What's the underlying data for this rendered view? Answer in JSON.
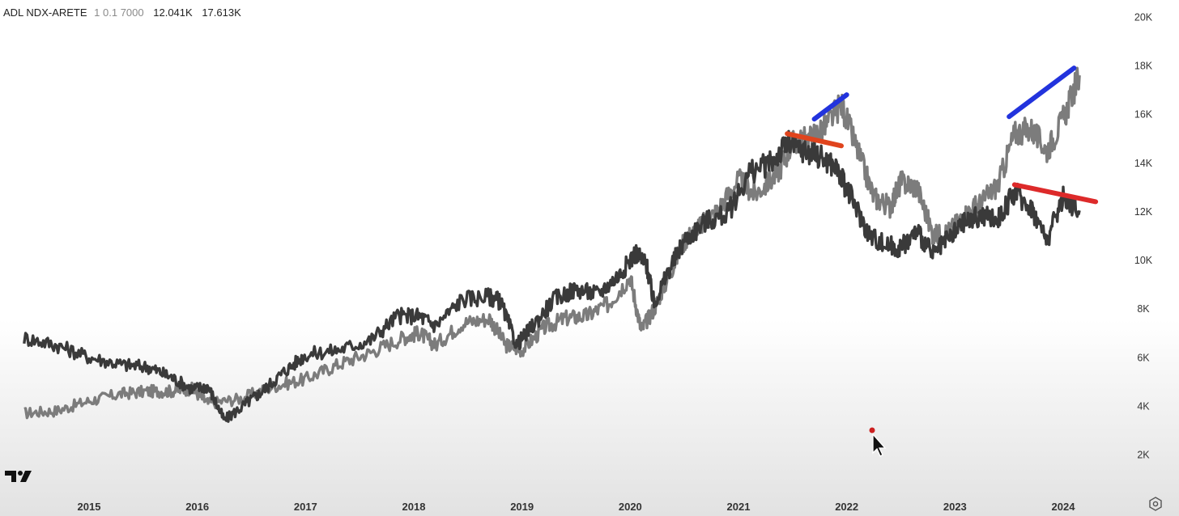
{
  "legend": {
    "title": "ADL NDX-ARETE",
    "params": "1 0.1 7000",
    "value1": "12.041K",
    "value2": "17.613K"
  },
  "icons": [
    "tradingview-logo-icon",
    "settings-icon",
    "mouse-cursor-icon"
  ],
  "colors": {
    "adl_line": "#3a3a3a",
    "ndx_line": "#7c7c7c",
    "divergence_up": "#2233dd",
    "divergence_down": "#dd2a2a",
    "divergence_down_alt": "#e0441d"
  },
  "chart_data": {
    "type": "line",
    "xlabel": "",
    "ylabel": "",
    "x_ticks": [
      "2015",
      "2016",
      "2017",
      "2018",
      "2019",
      "2020",
      "2021",
      "2022",
      "2023",
      "2024"
    ],
    "y_ticks": [
      "2K",
      "4K",
      "6K",
      "8K",
      "10K",
      "12K",
      "14K",
      "16K",
      "18K",
      "20K"
    ],
    "xlim": [
      2014.5,
      2024.6
    ],
    "ylim": [
      0,
      20500
    ],
    "grid": false,
    "series": [
      {
        "key": "ndx",
        "color": "#7c7c7c",
        "x": [
          2014.4,
          2014.7,
          2015.0,
          2015.3,
          2015.55,
          2015.75,
          2015.95,
          2016.1,
          2016.4,
          2016.7,
          2017.0,
          2017.3,
          2017.6,
          2017.9,
          2018.05,
          2018.2,
          2018.45,
          2018.7,
          2018.85,
          2019.0,
          2019.2,
          2019.4,
          2019.6,
          2019.8,
          2020.0,
          2020.1,
          2020.22,
          2020.35,
          2020.5,
          2020.65,
          2020.8,
          2021.0,
          2021.15,
          2021.35,
          2021.5,
          2021.65,
          2021.8,
          2021.95,
          2022.1,
          2022.25,
          2022.4,
          2022.5,
          2022.65,
          2022.8,
          2022.95,
          2023.1,
          2023.25,
          2023.4,
          2023.55,
          2023.7,
          2023.85,
          2024.0,
          2024.15
        ],
        "values": [
          3700,
          3800,
          4200,
          4500,
          4600,
          4600,
          4700,
          4100,
          4300,
          4800,
          5100,
          5700,
          6200,
          6800,
          7000,
          6500,
          7400,
          7600,
          6500,
          6300,
          7200,
          7600,
          7700,
          8200,
          9300,
          7100,
          8000,
          9300,
          10800,
          11400,
          12000,
          13300,
          12700,
          13500,
          14800,
          15000,
          15500,
          16400,
          14500,
          12600,
          12200,
          13200,
          13000,
          11000,
          11200,
          11900,
          12400,
          13100,
          15200,
          15400,
          14500,
          15800,
          17600
        ]
      },
      {
        "key": "adl",
        "color": "#3a3a3a",
        "x": [
          2014.4,
          2014.7,
          2015.0,
          2015.3,
          2015.55,
          2015.75,
          2015.95,
          2016.1,
          2016.25,
          2016.45,
          2016.6,
          2016.8,
          2017.0,
          2017.3,
          2017.6,
          2017.85,
          2018.05,
          2018.2,
          2018.45,
          2018.7,
          2018.8,
          2018.95,
          2019.1,
          2019.3,
          2019.5,
          2019.7,
          2019.9,
          2020.05,
          2020.15,
          2020.22,
          2020.35,
          2020.5,
          2020.7,
          2020.9,
          2021.1,
          2021.3,
          2021.45,
          2021.6,
          2021.75,
          2021.9,
          2022.05,
          2022.2,
          2022.35,
          2022.5,
          2022.65,
          2022.8,
          2022.95,
          2023.1,
          2023.25,
          2023.4,
          2023.55,
          2023.7,
          2023.85,
          2024.0,
          2024.15
        ],
        "values": [
          6800,
          6500,
          6000,
          5700,
          5600,
          5200,
          4700,
          4800,
          3400,
          4100,
          4600,
          5400,
          6100,
          6300,
          6700,
          7700,
          7700,
          7300,
          8400,
          8500,
          8300,
          6500,
          7300,
          8400,
          8800,
          8600,
          9400,
          10300,
          9800,
          8200,
          9500,
          10800,
          11600,
          11900,
          13600,
          14000,
          14800,
          14500,
          14300,
          13800,
          12500,
          11100,
          10600,
          10500,
          11200,
          10200,
          10900,
          11600,
          11800,
          11700,
          12800,
          12200,
          10800,
          12600,
          12041
        ]
      }
    ],
    "annotations": [
      {
        "type": "trendline",
        "color": "#2233dd",
        "x": [
          2021.7,
          2022.0
        ],
        "y": [
          15800,
          16800
        ]
      },
      {
        "type": "trendline",
        "color": "#2233dd",
        "x": [
          2023.5,
          2024.1
        ],
        "y": [
          15900,
          17900
        ]
      },
      {
        "type": "trendline",
        "color": "#e0441d",
        "x": [
          2021.45,
          2021.95
        ],
        "y": [
          15200,
          14700
        ]
      },
      {
        "type": "trendline",
        "color": "#dd2a2a",
        "x": [
          2023.55,
          2024.3
        ],
        "y": [
          13100,
          12400
        ]
      }
    ]
  }
}
